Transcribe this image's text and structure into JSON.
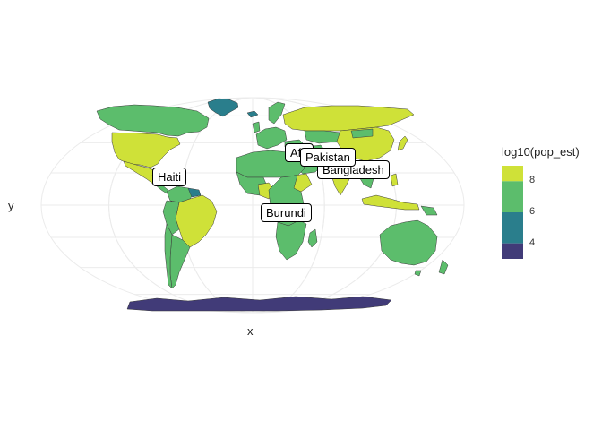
{
  "plot": {
    "x_axis_title": "x",
    "y_axis_title": "y"
  },
  "legend": {
    "title": "log10(pop_est)",
    "ticks": [
      {
        "value": 8,
        "label": "8"
      },
      {
        "value": 6,
        "label": "6"
      },
      {
        "value": 4,
        "label": "4"
      }
    ],
    "steps": [
      {
        "from": 8,
        "to": 9,
        "color": "#cfe138"
      },
      {
        "from": 6,
        "to": 8,
        "color": "#5cbd6c"
      },
      {
        "from": 4,
        "to": 6,
        "color": "#2a7e8c"
      },
      {
        "from": 3,
        "to": 4,
        "color": "#413b78"
      }
    ]
  },
  "labels": [
    {
      "id": "haiti",
      "text": "Haiti"
    },
    {
      "id": "burundi",
      "text": "Burundi"
    },
    {
      "id": "afghanistan",
      "text": "Afghanistan"
    },
    {
      "id": "bangladesh",
      "text": "Bangladesh"
    },
    {
      "id": "pakistan",
      "text": "Pakistan"
    }
  ],
  "colors": {
    "graticule": "#ebebeb",
    "country_border": "#3a3a3a"
  }
}
